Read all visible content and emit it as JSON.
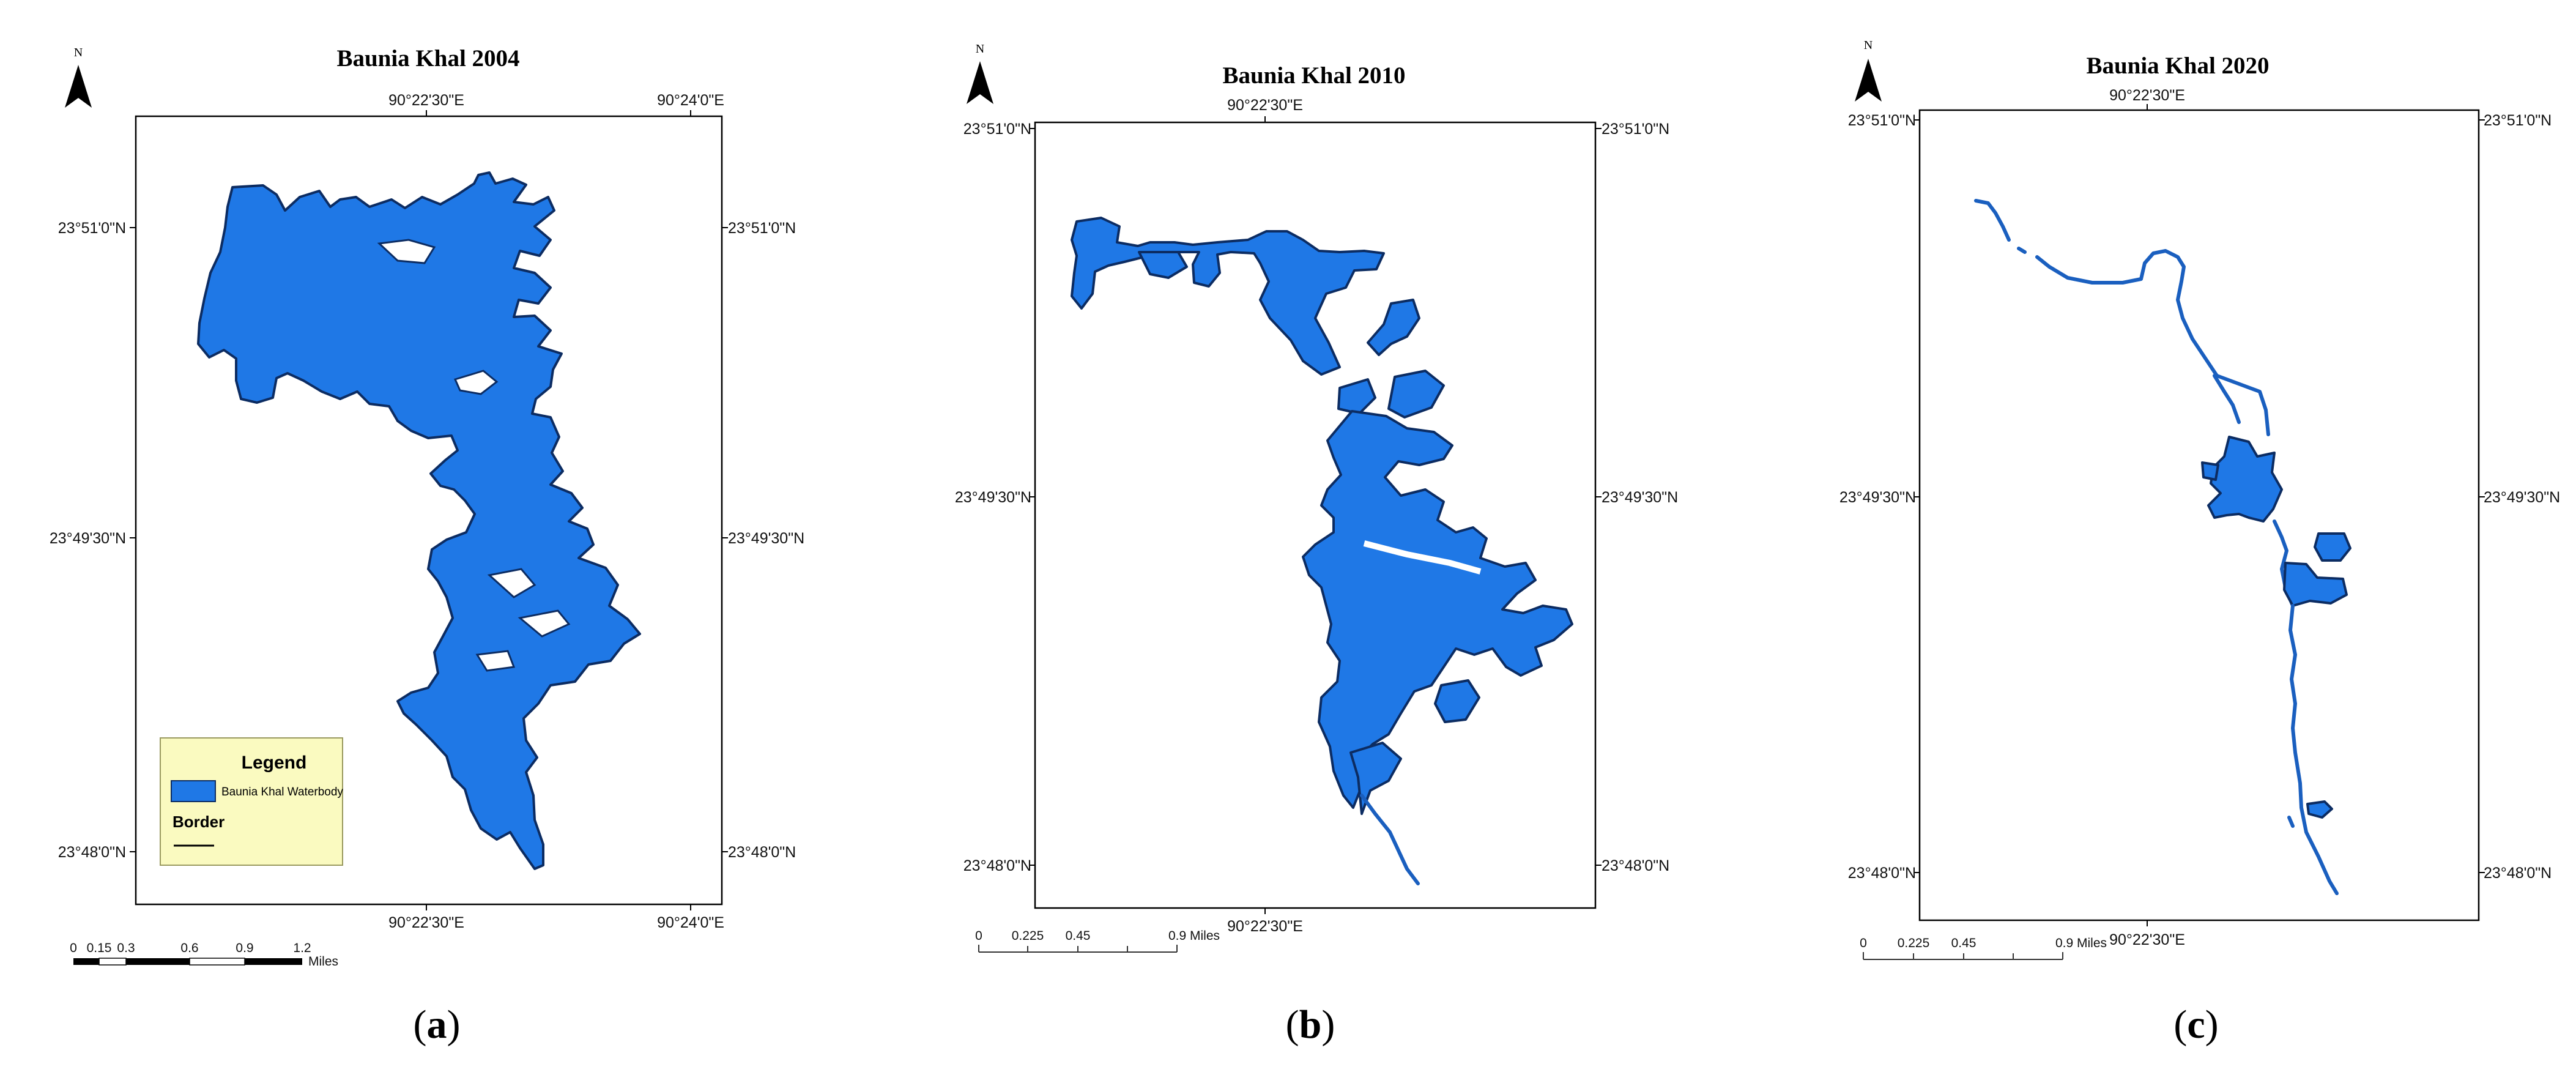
{
  "panels": [
    {
      "title": "Baunia Khal 2004",
      "north_label": "N",
      "coords": {
        "top_left": "90°22'30\"E",
        "top_right": "90°24'0\"E",
        "bottom_left": "90°22'30\"E",
        "bottom_right": "90°24'0\"E",
        "left_top": "23°51'0\"N",
        "left_mid": "23°49'30\"N",
        "left_bot": "23°48'0\"N",
        "right_top": "23°51'0\"N",
        "right_mid": "23°49'30\"N",
        "right_bot": "23°48'0\"N"
      },
      "scale": {
        "labels": [
          "0",
          "0.15",
          "0.3",
          "0.6",
          "0.9",
          "1.2"
        ],
        "unit": "Miles"
      },
      "legend": {
        "title": "Legend",
        "item": "Baunia Khal Waterbody",
        "border_label": "Border"
      },
      "caption_open": "(",
      "caption_letter": "a",
      "caption_close": ")"
    },
    {
      "title": "Baunia Khal 2010",
      "north_label": "N",
      "coords": {
        "top": "90°22'30\"E",
        "bottom": "90°22'30\"E",
        "left_top": "23°51'0\"N",
        "left_mid": "23°49'30\"N",
        "left_bot": "23°48'0\"N",
        "right_top": "23°51'0\"N",
        "right_mid": "23°49'30\"N",
        "right_bot": "23°48'0\"N"
      },
      "scale": {
        "labels": [
          "0",
          "0.225",
          "0.45",
          "0.9 Miles"
        ]
      },
      "caption_open": "(",
      "caption_letter": "b",
      "caption_close": ")"
    },
    {
      "title": "Baunia Khal 2020",
      "north_label": "N",
      "coords": {
        "top": "90°22'30\"E",
        "bottom": "90°22'30\"E",
        "left_top": "23°51'0\"N",
        "left_mid": "23°49'30\"N",
        "left_bot": "23°48'0\"N",
        "right_top": "23°51'0\"N",
        "right_mid": "23°49'30\"N",
        "right_bot": "23°48'0\"N"
      },
      "scale": {
        "labels": [
          "0",
          "0.225",
          "0.45",
          "0.9 Miles"
        ]
      },
      "caption_open": "(",
      "caption_letter": "c",
      "caption_close": ")"
    }
  ],
  "colors": {
    "water": "#1f78e6",
    "water_outline": "#0c2c62",
    "legend_bg": "#fafac0"
  }
}
